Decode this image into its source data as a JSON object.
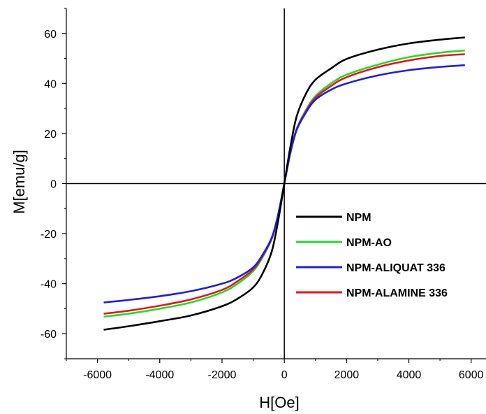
{
  "chart_data": {
    "type": "line",
    "title": "",
    "xlabel": "H[Oe]",
    "ylabel": "M[emu/g]",
    "xlim": [
      -7000,
      6500
    ],
    "ylim": [
      -70,
      70
    ],
    "xticks": [
      -6000,
      -4000,
      -2000,
      0,
      2000,
      4000,
      6000
    ],
    "yticks": [
      -60,
      -40,
      -20,
      0,
      20,
      40,
      60
    ],
    "grid": false,
    "legend_position": "center-right",
    "series": [
      {
        "name": "NPM",
        "color": "#000000",
        "x": [
          -5800,
          -5000,
          -4000,
          -3000,
          -2000,
          -1500,
          -1000,
          -700,
          -400,
          -200,
          0,
          200,
          400,
          700,
          1000,
          1500,
          2000,
          3000,
          4000,
          5000,
          5800
        ],
        "y": [
          -58.4,
          -57.0,
          -55.0,
          -52.7,
          -49.0,
          -46.0,
          -41.5,
          -36.0,
          -27.0,
          -15.0,
          0,
          15.0,
          27.0,
          36.0,
          41.5,
          46.0,
          49.8,
          53.5,
          56.0,
          57.5,
          58.4
        ]
      },
      {
        "name": "NPM-AO",
        "color": "#22dd22",
        "x": [
          -5800,
          -5000,
          -4000,
          -3000,
          -2000,
          -1500,
          -1000,
          -700,
          -400,
          -200,
          0,
          200,
          400,
          700,
          1000,
          1500,
          2000,
          3000,
          4000,
          5000,
          5800
        ],
        "y": [
          -53.2,
          -52.0,
          -50.0,
          -47.5,
          -43.5,
          -40.0,
          -35.0,
          -29.5,
          -22.0,
          -13.0,
          0,
          13.0,
          22.0,
          29.5,
          35.0,
          40.0,
          43.5,
          47.5,
          50.5,
          52.3,
          53.2
        ]
      },
      {
        "name": "NPM-ALIQUAT 336",
        "color": "#1e1ee6",
        "x": [
          -5800,
          -5000,
          -4000,
          -3000,
          -2000,
          -1500,
          -1000,
          -700,
          -400,
          -200,
          0,
          200,
          400,
          700,
          1000,
          1500,
          2000,
          3000,
          4000,
          5000,
          5800
        ],
        "y": [
          -47.5,
          -46.5,
          -45.0,
          -43.0,
          -40.0,
          -37.5,
          -33.5,
          -28.5,
          -21.5,
          -12.5,
          0,
          12.5,
          21.5,
          28.5,
          33.5,
          37.5,
          40.0,
          43.2,
          45.3,
          46.6,
          47.3
        ]
      },
      {
        "name": "NPM-ALAMINE 336",
        "color": "#e8141e",
        "x": [
          -5800,
          -5000,
          -4000,
          -3000,
          -2000,
          -1500,
          -1000,
          -700,
          -400,
          -200,
          0,
          200,
          400,
          700,
          1000,
          1500,
          2000,
          3000,
          4000,
          5000,
          5800
        ],
        "y": [
          -52.0,
          -50.8,
          -48.8,
          -46.3,
          -42.5,
          -39.0,
          -34.3,
          -29.0,
          -21.8,
          -12.8,
          0,
          12.8,
          21.8,
          29.0,
          34.3,
          39.0,
          42.5,
          46.5,
          49.2,
          51.0,
          51.7
        ]
      }
    ]
  }
}
